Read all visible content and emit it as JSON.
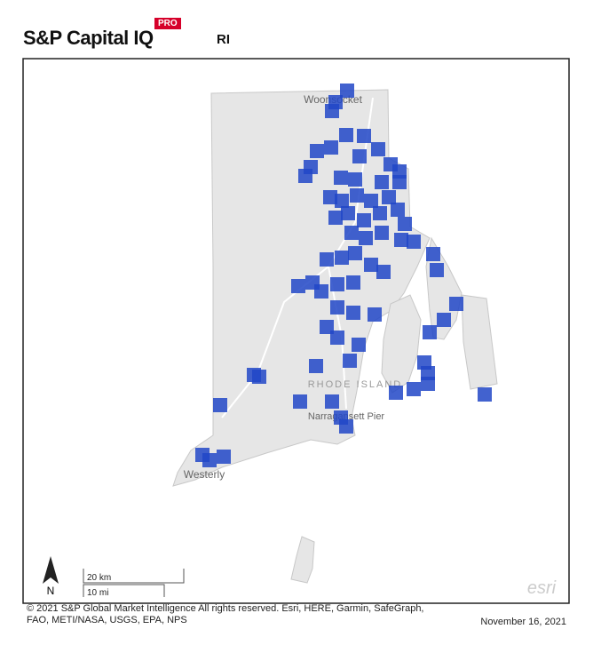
{
  "header": {
    "brand": "S&P Capital IQ",
    "badge": "PRO",
    "region": "RI"
  },
  "map": {
    "labels": {
      "woonsocket": "Woonsocket",
      "westerly": "Westerly",
      "state": "RHODE ISLAND",
      "narragansett": "Narragansett Pier"
    },
    "north": "N",
    "scale": {
      "metric": "20 km",
      "imperial": "10 mi"
    },
    "attribution_logo": "esri"
  },
  "footer": {
    "copyright": "© 2021 S&P Global Market Intelligence All rights reserved. Esri, HERE, Garmin, SafeGraph, FAO, METI/NASA, USGS, EPA, NPS",
    "date": "November 16, 2021"
  }
}
